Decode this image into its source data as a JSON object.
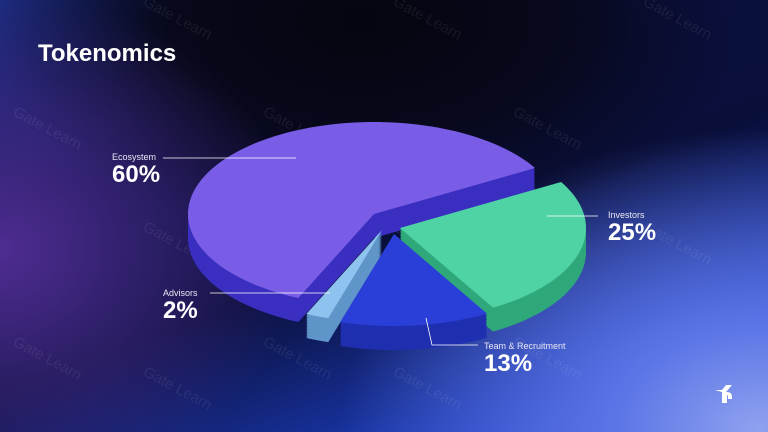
{
  "title": "Tokenomics",
  "watermark": "Gate Learn",
  "chart_data": {
    "type": "pie",
    "style": "3d-exploded",
    "categories": [
      "Investors",
      "Team & Recruitment",
      "Advisors",
      "Ecosystem"
    ],
    "values": [
      25,
      13,
      2,
      60
    ],
    "labels": [
      "25%",
      "13%",
      "2%",
      "60%"
    ],
    "colors": [
      "#4fd3a4",
      "#2a3fd8",
      "#8fc3ef",
      "#7a5de6"
    ],
    "side_colors": [
      "#2fa87a",
      "#1f2fb0",
      "#5f95c8",
      "#3a2fc0"
    ]
  }
}
